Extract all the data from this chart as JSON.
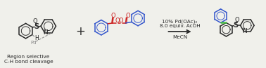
{
  "bg_color": "#f0f0eb",
  "bk": "#2a2a2a",
  "bl": "#3355cc",
  "rd": "#cc2222",
  "gn": "#44bb44",
  "gray": "#888888",
  "conditions_line1": "10% Pd(OAc)₂",
  "conditions_line2": "8.0 equiv. AcOH",
  "conditions_line3": "MeCN",
  "label_line1": "Region selective",
  "label_line2": "C-H bond cleavage",
  "figsize": [
    3.78,
    0.97
  ],
  "dpi": 100
}
